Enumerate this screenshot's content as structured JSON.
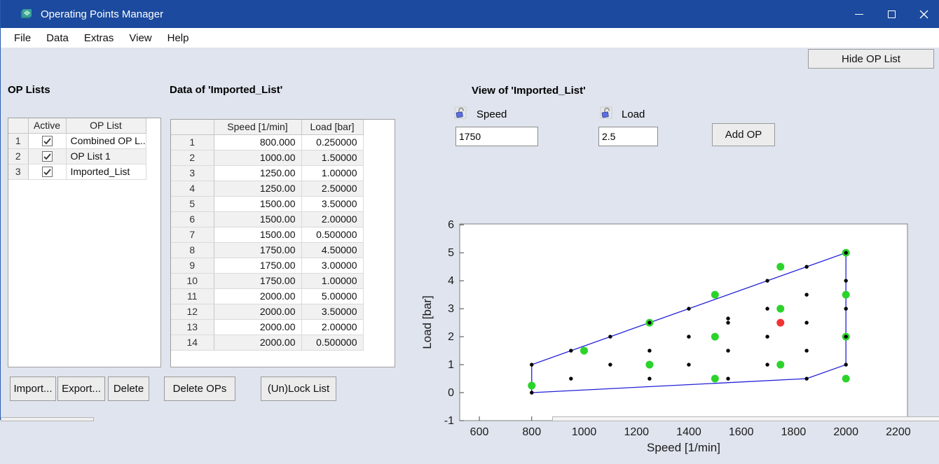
{
  "window": {
    "title": "Operating Points Manager",
    "controls": [
      "minimize",
      "maximize",
      "close"
    ]
  },
  "menu": {
    "items": [
      "File",
      "Data",
      "Extras",
      "View",
      "Help"
    ]
  },
  "toolbar": {
    "hide_op_list": "Hide OP List"
  },
  "op_lists": {
    "heading": "OP Lists",
    "columns": [
      "",
      "Active",
      "OP List"
    ],
    "rows": [
      {
        "num": "1",
        "active": true,
        "name": "Combined OP L..."
      },
      {
        "num": "2",
        "active": true,
        "name": "OP List 1"
      },
      {
        "num": "3",
        "active": true,
        "name": "Imported_List"
      }
    ],
    "buttons": [
      "Import...",
      "Export...",
      "Delete"
    ]
  },
  "data_panel": {
    "heading": "Data of 'Imported_List'",
    "columns": [
      "",
      "Speed [1/min]",
      "Load [bar]"
    ],
    "rows": [
      [
        "1",
        "800.000",
        "0.250000"
      ],
      [
        "2",
        "1000.00",
        "1.50000"
      ],
      [
        "3",
        "1250.00",
        "1.00000"
      ],
      [
        "4",
        "1250.00",
        "2.50000"
      ],
      [
        "5",
        "1500.00",
        "3.50000"
      ],
      [
        "6",
        "1500.00",
        "2.00000"
      ],
      [
        "7",
        "1500.00",
        "0.500000"
      ],
      [
        "8",
        "1750.00",
        "4.50000"
      ],
      [
        "9",
        "1750.00",
        "3.00000"
      ],
      [
        "10",
        "1750.00",
        "1.00000"
      ],
      [
        "11",
        "2000.00",
        "5.00000"
      ],
      [
        "12",
        "2000.00",
        "3.50000"
      ],
      [
        "13",
        "2000.00",
        "2.00000"
      ],
      [
        "14",
        "2000.00",
        "0.500000"
      ]
    ],
    "buttons": [
      "Delete OPs",
      "(Un)Lock List"
    ]
  },
  "view_panel": {
    "heading": "View of 'Imported_List'",
    "speed": {
      "label": "Speed",
      "value": "1750"
    },
    "load": {
      "label": "Load",
      "value": "2.5"
    },
    "add_button": "Add OP"
  },
  "chart_data": {
    "type": "scatter",
    "title": "",
    "xlabel": "Speed [1/min]",
    "ylabel": "Load [bar]",
    "xlim": [
      525,
      2235
    ],
    "ylim": [
      -1,
      6.03
    ],
    "xticks": [
      600,
      800,
      1000,
      1200,
      1400,
      1600,
      1800,
      2000,
      2200
    ],
    "yticks": [
      -1,
      0,
      1,
      2,
      3,
      4,
      5,
      6
    ],
    "grid": false,
    "line_color": "#2121d8",
    "envelope": [
      [
        800,
        0
      ],
      [
        800,
        1
      ],
      [
        2000,
        5
      ],
      [
        2000,
        1
      ],
      [
        1850,
        0.5
      ],
      [
        800,
        0
      ]
    ],
    "series": [
      {
        "name": "imported-list-points",
        "color": "#2bd32b",
        "marker_r": 5.5,
        "points": [
          [
            800,
            0.25
          ],
          [
            1000,
            1.5
          ],
          [
            1250,
            1
          ],
          [
            1250,
            2.5
          ],
          [
            1500,
            3.5
          ],
          [
            1500,
            2
          ],
          [
            1500,
            0.5
          ],
          [
            1750,
            4.5
          ],
          [
            1750,
            3
          ],
          [
            1750,
            1
          ],
          [
            2000,
            5
          ],
          [
            2000,
            3.5
          ],
          [
            2000,
            2
          ],
          [
            2000,
            0.5
          ]
        ]
      },
      {
        "name": "other-op-points",
        "color": "#000000",
        "marker_r": 2.7,
        "points": [
          [
            800,
            0
          ],
          [
            800,
            1
          ],
          [
            950,
            0.5
          ],
          [
            950,
            1.5
          ],
          [
            1100,
            1
          ],
          [
            1100,
            2
          ],
          [
            1250,
            0.5
          ],
          [
            1250,
            1.5
          ],
          [
            1250,
            2.5
          ],
          [
            1400,
            1
          ],
          [
            1400,
            2
          ],
          [
            1400,
            3
          ],
          [
            1550,
            0.5
          ],
          [
            1550,
            1.5
          ],
          [
            1550,
            2.5
          ],
          [
            1550,
            2.65
          ],
          [
            1700,
            1
          ],
          [
            1700,
            2
          ],
          [
            1700,
            3
          ],
          [
            1700,
            4
          ],
          [
            1850,
            0.5
          ],
          [
            1850,
            1.5
          ],
          [
            1850,
            2.5
          ],
          [
            1850,
            3.5
          ],
          [
            1850,
            4.5
          ],
          [
            2000,
            1
          ],
          [
            2000,
            2
          ],
          [
            2000,
            3
          ],
          [
            2000,
            4
          ],
          [
            2000,
            5
          ]
        ]
      },
      {
        "name": "new-op-preview",
        "color": "#f03434",
        "marker_r": 5.5,
        "points": [
          [
            1750,
            2.5
          ]
        ]
      }
    ]
  }
}
